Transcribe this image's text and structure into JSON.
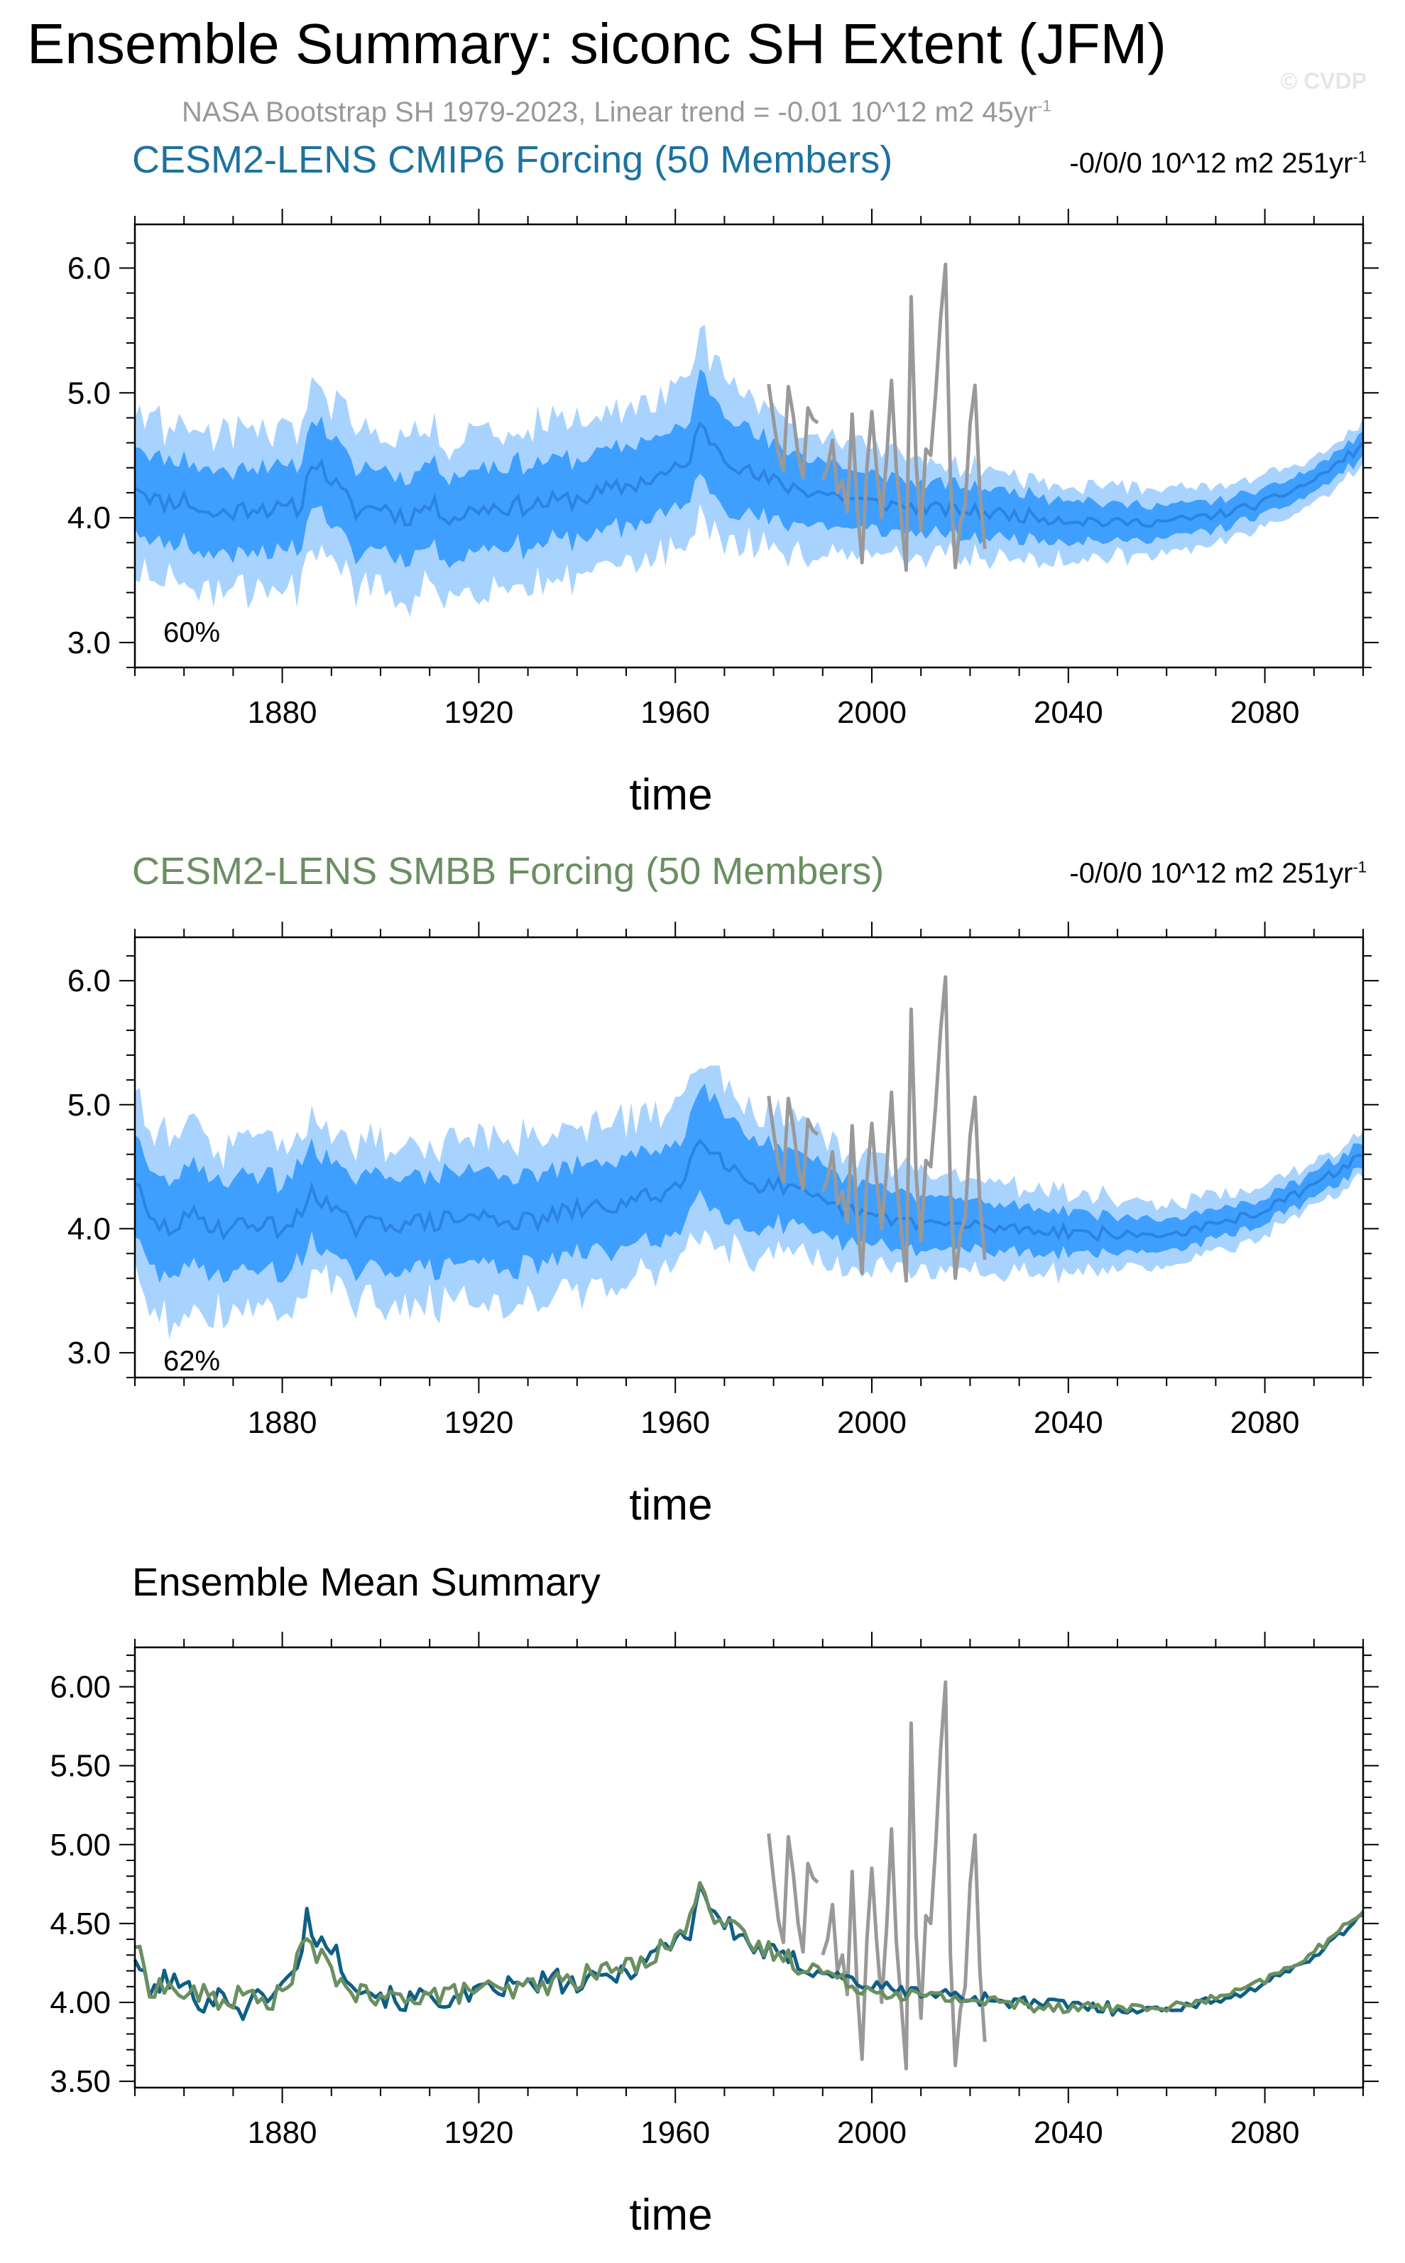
{
  "title": "Ensemble Summary: siconc SH Extent (JFM)",
  "watermark": "© CVDP",
  "obs_subtitle": {
    "text": "NASA Bootstrap SH 1979-2023, Linear trend = -0.01 10^12 m2 45yr",
    "sup": "-1"
  },
  "colors": {
    "band_outer": "#a9d3ff",
    "band_inner": "#3f9fff",
    "mean_line": "#2b84e0",
    "obs": "#999999",
    "cmip6": "#0f5f85",
    "smbb": "#6a8f61"
  },
  "chart_data": [
    {
      "type": "area",
      "title": "CESM2-LENS CMIP6 Forcing (50 Members)",
      "title_color": "#1d72a0",
      "trend_label": {
        "text": "-0/0/0 10^12 m2 251yr",
        "sup": "-1"
      },
      "percent_label": "60%",
      "xlabel": "time",
      "ylabel": "",
      "xlim": [
        1850,
        2100
      ],
      "ylim": [
        2.8,
        6.35
      ],
      "yticks": [
        3.0,
        4.0,
        5.0,
        6.0
      ],
      "ytick_labels": [
        "3.0",
        "4.0",
        "5.0",
        "6.0"
      ],
      "xticks": [
        1880,
        1920,
        1960,
        2000,
        2040,
        2080
      ],
      "xtick_labels": [
        "1880",
        "1920",
        "1960",
        "2000",
        "2040",
        "2080"
      ],
      "mean_keypoints": [
        [
          1850,
          4.28
        ],
        [
          1855,
          4.12
        ],
        [
          1860,
          4.15
        ],
        [
          1865,
          4.02
        ],
        [
          1870,
          4.05
        ],
        [
          1875,
          4.1
        ],
        [
          1880,
          4.05
        ],
        [
          1884,
          4.1
        ],
        [
          1886,
          4.48
        ],
        [
          1890,
          4.3
        ],
        [
          1895,
          4.05
        ],
        [
          1900,
          4.1
        ],
        [
          1905,
          4.0
        ],
        [
          1910,
          4.1
        ],
        [
          1915,
          4.0
        ],
        [
          1920,
          4.08
        ],
        [
          1930,
          4.1
        ],
        [
          1940,
          4.15
        ],
        [
          1950,
          4.25
        ],
        [
          1958,
          4.35
        ],
        [
          1962,
          4.4
        ],
        [
          1965,
          4.72
        ],
        [
          1970,
          4.52
        ],
        [
          1975,
          4.35
        ],
        [
          1980,
          4.28
        ],
        [
          1990,
          4.2
        ],
        [
          2000,
          4.12
        ],
        [
          2010,
          4.08
        ],
        [
          2020,
          4.05
        ],
        [
          2030,
          4.02
        ],
        [
          2040,
          3.99
        ],
        [
          2050,
          3.96
        ],
        [
          2060,
          3.97
        ],
        [
          2070,
          4.02
        ],
        [
          2080,
          4.12
        ],
        [
          2090,
          4.3
        ],
        [
          2100,
          4.58
        ]
      ],
      "inner_halfwidth_keypoints": [
        [
          1850,
          0.34
        ],
        [
          1885,
          0.34
        ],
        [
          1962,
          0.32
        ],
        [
          1966,
          0.42
        ],
        [
          1980,
          0.3
        ],
        [
          2000,
          0.22
        ],
        [
          2020,
          0.2
        ],
        [
          2050,
          0.15
        ],
        [
          2080,
          0.1
        ],
        [
          2100,
          0.1
        ]
      ],
      "outer_halfwidth_keypoints": [
        [
          1850,
          0.62
        ],
        [
          1885,
          0.62
        ],
        [
          1962,
          0.62
        ],
        [
          1966,
          0.72
        ],
        [
          1980,
          0.52
        ],
        [
          2000,
          0.42
        ],
        [
          2020,
          0.36
        ],
        [
          2050,
          0.28
        ],
        [
          2080,
          0.2
        ],
        [
          2100,
          0.17
        ]
      ]
    },
    {
      "type": "area",
      "title": "CESM2-LENS SMBB Forcing (50 Members)",
      "title_color": "#6a8f61",
      "trend_label": {
        "text": "-0/0/0 10^12 m2 251yr",
        "sup": "-1"
      },
      "percent_label": "62%",
      "xlabel": "time",
      "ylabel": "",
      "xlim": [
        1850,
        2100
      ],
      "ylim": [
        2.8,
        6.35
      ],
      "yticks": [
        3.0,
        4.0,
        5.0,
        6.0
      ],
      "ytick_labels": [
        "3.0",
        "4.0",
        "5.0",
        "6.0"
      ],
      "xticks": [
        1880,
        1920,
        1960,
        2000,
        2040,
        2080
      ],
      "xtick_labels": [
        "1880",
        "1920",
        "1960",
        "2000",
        "2040",
        "2080"
      ],
      "mean_keypoints": [
        [
          1850,
          4.4
        ],
        [
          1853,
          4.05
        ],
        [
          1857,
          4.0
        ],
        [
          1862,
          4.1
        ],
        [
          1868,
          4.0
        ],
        [
          1875,
          4.05
        ],
        [
          1880,
          4.0
        ],
        [
          1884,
          4.1
        ],
        [
          1886,
          4.35
        ],
        [
          1890,
          4.15
        ],
        [
          1895,
          4.0
        ],
        [
          1900,
          4.05
        ],
        [
          1910,
          4.05
        ],
        [
          1920,
          4.1
        ],
        [
          1930,
          4.05
        ],
        [
          1940,
          4.15
        ],
        [
          1950,
          4.2
        ],
        [
          1958,
          4.3
        ],
        [
          1962,
          4.4
        ],
        [
          1965,
          4.78
        ],
        [
          1970,
          4.55
        ],
        [
          1975,
          4.38
        ],
        [
          1980,
          4.35
        ],
        [
          1990,
          4.2
        ],
        [
          2000,
          4.1
        ],
        [
          2010,
          4.05
        ],
        [
          2020,
          4.02
        ],
        [
          2030,
          4.0
        ],
        [
          2040,
          3.98
        ],
        [
          2050,
          3.95
        ],
        [
          2060,
          3.95
        ],
        [
          2070,
          4.03
        ],
        [
          2080,
          4.15
        ],
        [
          2090,
          4.35
        ],
        [
          2100,
          4.6
        ]
      ],
      "inner_halfwidth_keypoints": [
        [
          1850,
          0.4
        ],
        [
          1885,
          0.38
        ],
        [
          1962,
          0.36
        ],
        [
          1966,
          0.46
        ],
        [
          1980,
          0.32
        ],
        [
          2000,
          0.24
        ],
        [
          2020,
          0.2
        ],
        [
          2050,
          0.15
        ],
        [
          2080,
          0.1
        ],
        [
          2100,
          0.1
        ]
      ],
      "outer_halfwidth_keypoints": [
        [
          1850,
          0.72
        ],
        [
          1885,
          0.66
        ],
        [
          1962,
          0.66
        ],
        [
          1966,
          0.74
        ],
        [
          1980,
          0.55
        ],
        [
          2000,
          0.45
        ],
        [
          2020,
          0.38
        ],
        [
          2050,
          0.28
        ],
        [
          2080,
          0.2
        ],
        [
          2100,
          0.17
        ]
      ]
    },
    {
      "type": "line",
      "title": "Ensemble Mean Summary",
      "title_color": "#000000",
      "xlabel": "time",
      "ylabel": "",
      "xlim": [
        1850,
        2100
      ],
      "ylim": [
        3.46,
        6.25
      ],
      "yticks": [
        3.5,
        4.0,
        4.5,
        5.0,
        5.5,
        6.0
      ],
      "ytick_labels": [
        "3.50",
        "4.00",
        "4.50",
        "5.00",
        "5.50",
        "6.00"
      ],
      "xticks": [
        1880,
        1920,
        1960,
        2000,
        2040,
        2080
      ],
      "xtick_labels": [
        "1880",
        "1920",
        "1960",
        "2000",
        "2040",
        "2080"
      ],
      "series": [
        {
          "name": "CESM2-LENS CMIP6 Forcing",
          "color": "#0f5f85",
          "keypoints": [
            [
              1850,
              4.3
            ],
            [
              1853,
              4.05
            ],
            [
              1856,
              4.15
            ],
            [
              1860,
              4.1
            ],
            [
              1864,
              4.0
            ],
            [
              1868,
              4.05
            ],
            [
              1872,
              3.95
            ],
            [
              1876,
              4.05
            ],
            [
              1880,
              4.1
            ],
            [
              1883,
              4.2
            ],
            [
              1885,
              4.55
            ],
            [
              1887,
              4.4
            ],
            [
              1890,
              4.35
            ],
            [
              1893,
              4.2
            ],
            [
              1896,
              4.1
            ],
            [
              1900,
              4.05
            ],
            [
              1905,
              4.0
            ],
            [
              1910,
              4.05
            ],
            [
              1915,
              4.0
            ],
            [
              1920,
              4.05
            ],
            [
              1925,
              4.1
            ],
            [
              1930,
              4.1
            ],
            [
              1935,
              4.15
            ],
            [
              1940,
              4.1
            ],
            [
              1945,
              4.15
            ],
            [
              1950,
              4.2
            ],
            [
              1955,
              4.3
            ],
            [
              1960,
              4.4
            ],
            [
              1963,
              4.45
            ],
            [
              1965,
              4.75
            ],
            [
              1968,
              4.55
            ],
            [
              1972,
              4.45
            ],
            [
              1976,
              4.35
            ],
            [
              1980,
              4.3
            ],
            [
              1985,
              4.25
            ],
            [
              1990,
              4.2
            ],
            [
              1995,
              4.15
            ],
            [
              2000,
              4.1
            ],
            [
              2005,
              4.08
            ],
            [
              2010,
              4.06
            ],
            [
              2015,
              4.05
            ],
            [
              2020,
              4.03
            ],
            [
              2025,
              4.02
            ],
            [
              2030,
              4.0
            ],
            [
              2035,
              3.99
            ],
            [
              2040,
              3.98
            ],
            [
              2045,
              3.97
            ],
            [
              2050,
              3.96
            ],
            [
              2055,
              3.95
            ],
            [
              2060,
              3.96
            ],
            [
              2065,
              3.98
            ],
            [
              2070,
              4.02
            ],
            [
              2075,
              4.05
            ],
            [
              2080,
              4.12
            ],
            [
              2085,
              4.2
            ],
            [
              2090,
              4.3
            ],
            [
              2095,
              4.42
            ],
            [
              2100,
              4.57
            ]
          ]
        },
        {
          "name": "CESM2-LENS SMBB Forcing",
          "color": "#6a8f61",
          "keypoints": [
            [
              1850,
              4.38
            ],
            [
              1853,
              4.1
            ],
            [
              1856,
              4.1
            ],
            [
              1860,
              4.05
            ],
            [
              1864,
              4.05
            ],
            [
              1868,
              4.0
            ],
            [
              1872,
              4.05
            ],
            [
              1876,
              4.0
            ],
            [
              1880,
              4.05
            ],
            [
              1883,
              4.25
            ],
            [
              1885,
              4.4
            ],
            [
              1887,
              4.3
            ],
            [
              1890,
              4.2
            ],
            [
              1893,
              4.1
            ],
            [
              1896,
              4.05
            ],
            [
              1900,
              4.0
            ],
            [
              1905,
              4.05
            ],
            [
              1910,
              4.05
            ],
            [
              1915,
              4.05
            ],
            [
              1920,
              4.1
            ],
            [
              1925,
              4.05
            ],
            [
              1930,
              4.1
            ],
            [
              1935,
              4.12
            ],
            [
              1940,
              4.15
            ],
            [
              1945,
              4.2
            ],
            [
              1950,
              4.22
            ],
            [
              1955,
              4.3
            ],
            [
              1960,
              4.4
            ],
            [
              1963,
              4.5
            ],
            [
              1965,
              4.82
            ],
            [
              1968,
              4.55
            ],
            [
              1972,
              4.45
            ],
            [
              1976,
              4.35
            ],
            [
              1980,
              4.32
            ],
            [
              1985,
              4.25
            ],
            [
              1990,
              4.2
            ],
            [
              1995,
              4.12
            ],
            [
              2000,
              4.08
            ],
            [
              2005,
              4.06
            ],
            [
              2010,
              4.04
            ],
            [
              2015,
              4.03
            ],
            [
              2020,
              4.02
            ],
            [
              2025,
              4.0
            ],
            [
              2030,
              3.99
            ],
            [
              2035,
              3.98
            ],
            [
              2040,
              3.98
            ],
            [
              2045,
              3.97
            ],
            [
              2050,
              3.97
            ],
            [
              2055,
              3.96
            ],
            [
              2060,
              3.97
            ],
            [
              2065,
              3.99
            ],
            [
              2070,
              4.03
            ],
            [
              2075,
              4.07
            ],
            [
              2080,
              4.14
            ],
            [
              2085,
              4.22
            ],
            [
              2090,
              4.32
            ],
            [
              2095,
              4.44
            ],
            [
              2100,
              4.59
            ]
          ]
        }
      ]
    }
  ],
  "observations": {
    "name": "NASA Bootstrap SH",
    "color": "#999999",
    "segments": [
      [
        [
          1979,
          5.07
        ],
        [
          1980,
          4.78
        ],
        [
          1981,
          4.52
        ],
        [
          1982,
          4.38
        ],
        [
          1983,
          5.05
        ],
        [
          1984,
          4.82
        ],
        [
          1985,
          4.5
        ],
        [
          1986,
          4.32
        ],
        [
          1987,
          4.88
        ],
        [
          1988,
          4.79
        ],
        [
          1989,
          4.76
        ]
      ],
      [
        [
          1990,
          4.3
        ],
        [
          1991,
          4.4
        ],
        [
          1992,
          4.62
        ],
        [
          1993,
          4.2
        ],
        [
          1994,
          4.3
        ],
        [
          1995,
          4.05
        ],
        [
          1996,
          4.83
        ],
        [
          1997,
          4.1
        ],
        [
          1998,
          3.64
        ],
        [
          1999,
          4.4
        ],
        [
          2000,
          4.85
        ],
        [
          2001,
          4.38
        ],
        [
          2002,
          4.0
        ],
        [
          2003,
          4.47
        ],
        [
          2004,
          5.1
        ],
        [
          2005,
          4.38
        ],
        [
          2006,
          3.99
        ],
        [
          2007,
          3.58
        ],
        [
          2008,
          5.77
        ],
        [
          2009,
          4.44
        ],
        [
          2010,
          3.9
        ],
        [
          2011,
          4.55
        ],
        [
          2012,
          4.5
        ],
        [
          2013,
          5.0
        ],
        [
          2014,
          5.6
        ],
        [
          2015,
          6.03
        ],
        [
          2016,
          4.3
        ],
        [
          2017,
          3.6
        ],
        [
          2018,
          3.95
        ],
        [
          2019,
          4.1
        ],
        [
          2020,
          4.75
        ],
        [
          2021,
          5.06
        ],
        [
          2022,
          4.2
        ],
        [
          2023,
          3.75
        ]
      ]
    ]
  },
  "spread_seed": [
    11,
    29
  ]
}
